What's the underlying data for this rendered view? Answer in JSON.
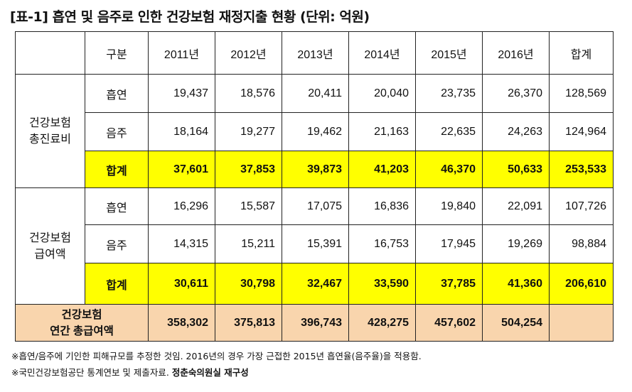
{
  "title": "[표-1] 흡연 및 음주로 인한 건강보험 재정지출 현황 (단위: 억원)",
  "header": [
    "",
    "구분",
    "2011년",
    "2012년",
    "2013년",
    "2014년",
    "2015년",
    "2016년",
    "합계"
  ],
  "group1": {
    "label": "건강보험 총진료비",
    "rows": [
      {
        "label": "흡연",
        "values": [
          "19,437",
          "18,576",
          "20,411",
          "20,040",
          "23,735",
          "26,370",
          "128,569"
        ]
      },
      {
        "label": "음주",
        "values": [
          "18,164",
          "19,277",
          "19,462",
          "21,163",
          "22,635",
          "24,263",
          "124,964"
        ]
      },
      {
        "label": "합계",
        "values": [
          "37,601",
          "37,853",
          "39,873",
          "41,203",
          "46,370",
          "50,633",
          "253,533"
        ]
      }
    ]
  },
  "group2": {
    "label": "건강보험 급여액",
    "rows": [
      {
        "label": "흡연",
        "values": [
          "16,296",
          "15,587",
          "17,075",
          "16,836",
          "19,840",
          "22,091",
          "107,726"
        ]
      },
      {
        "label": "음주",
        "values": [
          "14,315",
          "15,211",
          "15,391",
          "16,753",
          "17,945",
          "19,269",
          "98,884"
        ]
      },
      {
        "label": "합계",
        "values": [
          "30,611",
          "30,798",
          "32,467",
          "33,590",
          "37,785",
          "41,360",
          "206,610"
        ]
      }
    ]
  },
  "total": {
    "label": "건강보험 연간 총급여액",
    "values": [
      "358,302",
      "375,813",
      "396,743",
      "428,275",
      "457,602",
      "504,254",
      ""
    ]
  },
  "notes": {
    "note1": "※흡연/음주에 기인한 피해규모를 추정한 것임. 2016년의 경우 가장 근접한 2015년 흡연율(음주율)을 적용함.",
    "note2_prefix": "※국민건강보험공단 통계연보 및 제출자료. ",
    "note2_bold": "정춘숙의원실 재구성"
  },
  "colors": {
    "highlight": "#ffff00",
    "total_bg": "#f9d5ad",
    "border": "#222222"
  }
}
